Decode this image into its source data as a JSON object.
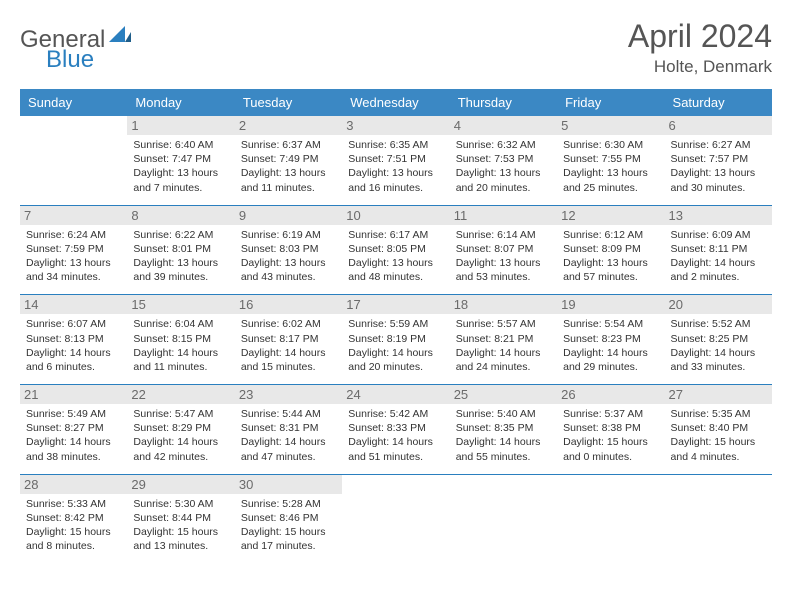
{
  "brand": {
    "part1": "General",
    "part2": "Blue"
  },
  "title": "April 2024",
  "location": "Holte, Denmark",
  "colors": {
    "header_bg": "#3b88c4",
    "border": "#2a7fbf",
    "daynum_bg": "#e8e8e8",
    "text": "#333333",
    "muted": "#555555"
  },
  "dayHeaders": [
    "Sunday",
    "Monday",
    "Tuesday",
    "Wednesday",
    "Thursday",
    "Friday",
    "Saturday"
  ],
  "weeks": [
    [
      {
        "n": "",
        "sr": "",
        "ss": "",
        "dl": ""
      },
      {
        "n": "1",
        "sr": "6:40 AM",
        "ss": "7:47 PM",
        "dl": "13 hours and 7 minutes."
      },
      {
        "n": "2",
        "sr": "6:37 AM",
        "ss": "7:49 PM",
        "dl": "13 hours and 11 minutes."
      },
      {
        "n": "3",
        "sr": "6:35 AM",
        "ss": "7:51 PM",
        "dl": "13 hours and 16 minutes."
      },
      {
        "n": "4",
        "sr": "6:32 AM",
        "ss": "7:53 PM",
        "dl": "13 hours and 20 minutes."
      },
      {
        "n": "5",
        "sr": "6:30 AM",
        "ss": "7:55 PM",
        "dl": "13 hours and 25 minutes."
      },
      {
        "n": "6",
        "sr": "6:27 AM",
        "ss": "7:57 PM",
        "dl": "13 hours and 30 minutes."
      }
    ],
    [
      {
        "n": "7",
        "sr": "6:24 AM",
        "ss": "7:59 PM",
        "dl": "13 hours and 34 minutes."
      },
      {
        "n": "8",
        "sr": "6:22 AM",
        "ss": "8:01 PM",
        "dl": "13 hours and 39 minutes."
      },
      {
        "n": "9",
        "sr": "6:19 AM",
        "ss": "8:03 PM",
        "dl": "13 hours and 43 minutes."
      },
      {
        "n": "10",
        "sr": "6:17 AM",
        "ss": "8:05 PM",
        "dl": "13 hours and 48 minutes."
      },
      {
        "n": "11",
        "sr": "6:14 AM",
        "ss": "8:07 PM",
        "dl": "13 hours and 53 minutes."
      },
      {
        "n": "12",
        "sr": "6:12 AM",
        "ss": "8:09 PM",
        "dl": "13 hours and 57 minutes."
      },
      {
        "n": "13",
        "sr": "6:09 AM",
        "ss": "8:11 PM",
        "dl": "14 hours and 2 minutes."
      }
    ],
    [
      {
        "n": "14",
        "sr": "6:07 AM",
        "ss": "8:13 PM",
        "dl": "14 hours and 6 minutes."
      },
      {
        "n": "15",
        "sr": "6:04 AM",
        "ss": "8:15 PM",
        "dl": "14 hours and 11 minutes."
      },
      {
        "n": "16",
        "sr": "6:02 AM",
        "ss": "8:17 PM",
        "dl": "14 hours and 15 minutes."
      },
      {
        "n": "17",
        "sr": "5:59 AM",
        "ss": "8:19 PM",
        "dl": "14 hours and 20 minutes."
      },
      {
        "n": "18",
        "sr": "5:57 AM",
        "ss": "8:21 PM",
        "dl": "14 hours and 24 minutes."
      },
      {
        "n": "19",
        "sr": "5:54 AM",
        "ss": "8:23 PM",
        "dl": "14 hours and 29 minutes."
      },
      {
        "n": "20",
        "sr": "5:52 AM",
        "ss": "8:25 PM",
        "dl": "14 hours and 33 minutes."
      }
    ],
    [
      {
        "n": "21",
        "sr": "5:49 AM",
        "ss": "8:27 PM",
        "dl": "14 hours and 38 minutes."
      },
      {
        "n": "22",
        "sr": "5:47 AM",
        "ss": "8:29 PM",
        "dl": "14 hours and 42 minutes."
      },
      {
        "n": "23",
        "sr": "5:44 AM",
        "ss": "8:31 PM",
        "dl": "14 hours and 47 minutes."
      },
      {
        "n": "24",
        "sr": "5:42 AM",
        "ss": "8:33 PM",
        "dl": "14 hours and 51 minutes."
      },
      {
        "n": "25",
        "sr": "5:40 AM",
        "ss": "8:35 PM",
        "dl": "14 hours and 55 minutes."
      },
      {
        "n": "26",
        "sr": "5:37 AM",
        "ss": "8:38 PM",
        "dl": "15 hours and 0 minutes."
      },
      {
        "n": "27",
        "sr": "5:35 AM",
        "ss": "8:40 PM",
        "dl": "15 hours and 4 minutes."
      }
    ],
    [
      {
        "n": "28",
        "sr": "5:33 AM",
        "ss": "8:42 PM",
        "dl": "15 hours and 8 minutes."
      },
      {
        "n": "29",
        "sr": "5:30 AM",
        "ss": "8:44 PM",
        "dl": "15 hours and 13 minutes."
      },
      {
        "n": "30",
        "sr": "5:28 AM",
        "ss": "8:46 PM",
        "dl": "15 hours and 17 minutes."
      },
      {
        "n": "",
        "sr": "",
        "ss": "",
        "dl": ""
      },
      {
        "n": "",
        "sr": "",
        "ss": "",
        "dl": ""
      },
      {
        "n": "",
        "sr": "",
        "ss": "",
        "dl": ""
      },
      {
        "n": "",
        "sr": "",
        "ss": "",
        "dl": ""
      }
    ]
  ],
  "labels": {
    "sunrise": "Sunrise: ",
    "sunset": "Sunset: ",
    "daylight": "Daylight: "
  }
}
